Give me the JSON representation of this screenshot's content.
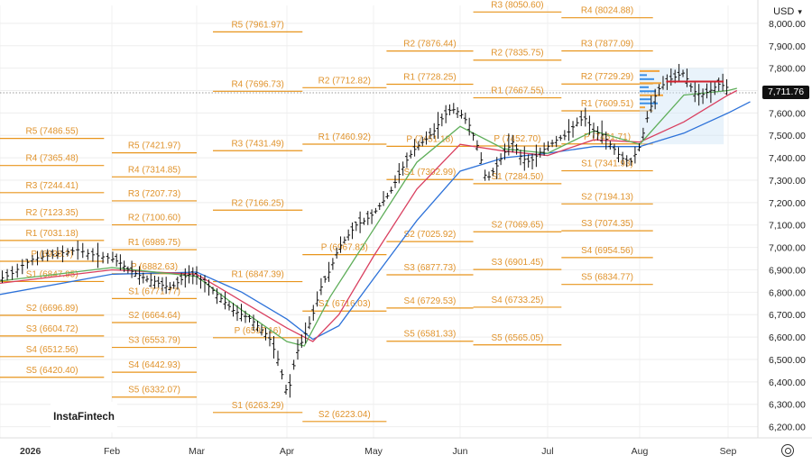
{
  "chart_data": {
    "type": "candlestick-ohlc",
    "currency": "USD",
    "current_price": "7,711.76",
    "watermark": "InstaFintech",
    "y_ticks": [
      "8,000.00",
      "7,900.00",
      "7,800.00",
      "7,700.00",
      "7,600.00",
      "7,500.00",
      "7,400.00",
      "7,300.00",
      "7,200.00",
      "7,100.00",
      "7,000.00",
      "6,900.00",
      "6,800.00",
      "6,700.00",
      "6,600.00",
      "6,500.00",
      "6,400.00",
      "6,300.00",
      "6,200.00"
    ],
    "ylim": [
      6150,
      8080
    ],
    "x_ticks": [
      "2026",
      "Feb",
      "Mar",
      "Apr",
      "May",
      "Jun",
      "Jul",
      "Aug",
      "Sep"
    ],
    "pivot_levels": [
      {
        "t0": 0,
        "t1": 0.93,
        "labels": [
          {
            "label": "R2 (7123.35)",
            "y": 7123.35
          },
          {
            "label": "R1 (7031.18)",
            "y": 7031.18
          },
          {
            "label": "P (6938.?)",
            "y": 6938
          },
          {
            "label": "S1 (6847.95)",
            "y": 6847.95
          },
          {
            "label": "S2 (6696.89)",
            "y": 6696.89
          },
          {
            "label": "S3 (6604.72)",
            "y": 6604.72
          },
          {
            "label": "S4 (6512.56)",
            "y": 6512.56
          },
          {
            "label": "S5 (6420.40)",
            "y": 6420.4
          },
          {
            "label": "R5 (7486.55)",
            "y": 7486.55
          },
          {
            "label": "R4 (7365.48)",
            "y": 7365.48
          },
          {
            "label": "R3 (7244.41)",
            "y": 7244.41
          }
        ]
      },
      {
        "t0": 1,
        "t1": 2,
        "labels": [
          {
            "label": "R5 (7421.97)",
            "y": 7421.97
          },
          {
            "label": "R4 (7314.85)",
            "y": 7314.85
          },
          {
            "label": "R3 (7207.73)",
            "y": 7207.73
          },
          {
            "label": "R2 (7100.60)",
            "y": 7100.6
          },
          {
            "label": "R1 (6989.75)",
            "y": 6989.75
          },
          {
            "label": "P (6882.63)",
            "y": 6882.63
          },
          {
            "label": "S1 (6771.77)",
            "y": 6771.77
          },
          {
            "label": "S2 (6664.64)",
            "y": 6664.64
          },
          {
            "label": "S3 (6553.79)",
            "y": 6553.79
          },
          {
            "label": "S4 (6442.93)",
            "y": 6442.93
          },
          {
            "label": "S5 (6332.07)",
            "y": 6332.07
          }
        ]
      },
      {
        "t0": 2.18,
        "t1": 3.18,
        "labels": [
          {
            "label": "R5 (7961.97)",
            "y": 7961.97
          },
          {
            "label": "R4 (7696.73)",
            "y": 7696.73
          },
          {
            "label": "R3 (7431.49)",
            "y": 7431.49
          },
          {
            "label": "R2 (7166.25)",
            "y": 7166.25
          },
          {
            "label": "R1 (6847.39)",
            "y": 6847.39
          },
          {
            "label": "P (6597.16)",
            "y": 6597.16
          },
          {
            "label": "S1 (6263.29)",
            "y": 6263.29
          }
        ]
      },
      {
        "t0": 3.18,
        "t1": 4.15,
        "labels": [
          {
            "label": "R2 (7712.82)",
            "y": 7712.82
          },
          {
            "label": "R1 (7460.92)",
            "y": 7460.92
          },
          {
            "label": "P (6967.83)",
            "y": 6967.83
          },
          {
            "label": "S1 (6716.03)",
            "y": 6716.03
          },
          {
            "label": "S2 (6223.04)",
            "y": 6223.04
          }
        ]
      },
      {
        "t0": 4.15,
        "t1": 5.15,
        "labels": [
          {
            "label": "R2 (7876.44)",
            "y": 7876.44
          },
          {
            "label": "R1 (7728.25)",
            "y": 7728.25
          },
          {
            "label": "P (7451.18)",
            "y": 7451.18
          },
          {
            "label": "S1 (7302.99)",
            "y": 7302.99
          },
          {
            "label": "S2 (7025.92)",
            "y": 7025.92
          },
          {
            "label": "S3 (6877.73)",
            "y": 6877.73
          },
          {
            "label": "S4 (6729.53)",
            "y": 6729.53
          },
          {
            "label": "S5 (6581.33)",
            "y": 6581.33
          }
        ]
      },
      {
        "t0": 5.15,
        "t1": 6.15,
        "labels": [
          {
            "label": "R3 (8050.60)",
            "y": 8050.6
          },
          {
            "label": "R2 (7835.75)",
            "y": 7835.75
          },
          {
            "label": "R1 (7667.55)",
            "y": 7667.55
          },
          {
            "label": "P (7452.70)",
            "y": 7452.7
          },
          {
            "label": "S1 (7284.50)",
            "y": 7284.5
          },
          {
            "label": "S2 (7069.65)",
            "y": 7069.65
          },
          {
            "label": "S3 (6901.45)",
            "y": 6901.45
          },
          {
            "label": "S4 (6733.25)",
            "y": 6733.25
          },
          {
            "label": "S5 (6565.05)",
            "y": 6565.05
          }
        ]
      },
      {
        "t0": 6.15,
        "t1": 7.15,
        "labels": [
          {
            "label": "R4 (8024.88)",
            "y": 8024.88
          },
          {
            "label": "R3 (7877.09)",
            "y": 7877.09
          },
          {
            "label": "R2 (7729.29)",
            "y": 7729.29
          },
          {
            "label": "R1 (7609.51)",
            "y": 7609.51
          },
          {
            "label": "P (7461.71)",
            "y": 7461.71
          },
          {
            "label": "S1 (7341.93)",
            "y": 7341.93
          },
          {
            "label": "S2 (7194.13)",
            "y": 7194.13
          },
          {
            "label": "S3 (7074.35)",
            "y": 7074.35
          },
          {
            "label": "S4 (6954.56)",
            "y": 6954.56
          },
          {
            "label": "S5 (6834.77)",
            "y": 6834.77
          }
        ]
      }
    ],
    "price_path": [
      [
        0.0,
        6860
      ],
      [
        0.1,
        6880
      ],
      [
        0.2,
        6920
      ],
      [
        0.3,
        6950
      ],
      [
        0.4,
        6960
      ],
      [
        0.5,
        6970
      ],
      [
        0.6,
        6980
      ],
      [
        0.7,
        6990
      ],
      [
        0.8,
        6970
      ],
      [
        0.9,
        6960
      ],
      [
        1.0,
        6950
      ],
      [
        1.1,
        6930
      ],
      [
        1.2,
        6900
      ],
      [
        1.3,
        6880
      ],
      [
        1.4,
        6860
      ],
      [
        1.5,
        6850
      ],
      [
        1.6,
        6830
      ],
      [
        1.7,
        6820
      ],
      [
        1.8,
        6850
      ],
      [
        1.9,
        6880
      ],
      [
        2.0,
        6870
      ],
      [
        2.1,
        6840
      ],
      [
        2.2,
        6800
      ],
      [
        2.3,
        6760
      ],
      [
        2.4,
        6720
      ],
      [
        2.5,
        6700
      ],
      [
        2.6,
        6680
      ],
      [
        2.7,
        6640
      ],
      [
        2.8,
        6600
      ],
      [
        2.9,
        6500
      ],
      [
        3.0,
        6350
      ],
      [
        3.05,
        6400
      ],
      [
        3.1,
        6520
      ],
      [
        3.2,
        6600
      ],
      [
        3.3,
        6700
      ],
      [
        3.4,
        6830
      ],
      [
        3.5,
        6900
      ],
      [
        3.6,
        7000
      ],
      [
        3.7,
        7050
      ],
      [
        3.8,
        7100
      ],
      [
        3.9,
        7120
      ],
      [
        4.0,
        7150
      ],
      [
        4.1,
        7200
      ],
      [
        4.2,
        7250
      ],
      [
        4.3,
        7330
      ],
      [
        4.4,
        7400
      ],
      [
        4.5,
        7450
      ],
      [
        4.6,
        7480
      ],
      [
        4.7,
        7520
      ],
      [
        4.8,
        7580
      ],
      [
        4.9,
        7620
      ],
      [
        5.0,
        7600
      ],
      [
        5.1,
        7550
      ],
      [
        5.2,
        7450
      ],
      [
        5.3,
        7300
      ],
      [
        5.4,
        7350
      ],
      [
        5.5,
        7420
      ],
      [
        5.6,
        7470
      ],
      [
        5.7,
        7400
      ],
      [
        5.8,
        7380
      ],
      [
        5.9,
        7420
      ],
      [
        6.0,
        7450
      ],
      [
        6.1,
        7480
      ],
      [
        6.2,
        7500
      ],
      [
        6.3,
        7550
      ],
      [
        6.4,
        7580
      ],
      [
        6.5,
        7520
      ],
      [
        6.6,
        7500
      ],
      [
        6.7,
        7450
      ],
      [
        6.8,
        7400
      ],
      [
        6.9,
        7380
      ],
      [
        7.0,
        7450
      ],
      [
        7.1,
        7600
      ],
      [
        7.2,
        7700
      ],
      [
        7.3,
        7740
      ],
      [
        7.4,
        7760
      ],
      [
        7.5,
        7780
      ],
      [
        7.6,
        7700
      ],
      [
        7.7,
        7680
      ],
      [
        7.8,
        7700
      ],
      [
        7.9,
        7730
      ],
      [
        8.0,
        7711.76
      ]
    ],
    "ma_fast": [
      [
        0,
        6850
      ],
      [
        1,
        6910
      ],
      [
        2,
        6870
      ],
      [
        2.5,
        6720
      ],
      [
        3,
        6580
      ],
      [
        3.2,
        6560
      ],
      [
        3.5,
        6780
      ],
      [
        4,
        7080
      ],
      [
        4.5,
        7380
      ],
      [
        5,
        7540
      ],
      [
        5.5,
        7440
      ],
      [
        6,
        7420
      ],
      [
        6.5,
        7520
      ],
      [
        7,
        7460
      ],
      [
        7.5,
        7680
      ],
      [
        8,
        7700
      ],
      [
        8.1,
        7710
      ]
    ],
    "ma_mid": [
      [
        0,
        6840
      ],
      [
        1,
        6900
      ],
      [
        2,
        6880
      ],
      [
        2.5,
        6760
      ],
      [
        3,
        6640
      ],
      [
        3.3,
        6580
      ],
      [
        3.6,
        6700
      ],
      [
        4,
        6960
      ],
      [
        4.5,
        7260
      ],
      [
        5,
        7460
      ],
      [
        5.5,
        7430
      ],
      [
        6,
        7410
      ],
      [
        6.5,
        7480
      ],
      [
        7,
        7470
      ],
      [
        7.5,
        7560
      ],
      [
        8,
        7680
      ],
      [
        8.1,
        7700
      ]
    ],
    "ma_slow": [
      [
        0,
        6790
      ],
      [
        1,
        6880
      ],
      [
        2,
        6890
      ],
      [
        2.5,
        6800
      ],
      [
        3,
        6680
      ],
      [
        3.3,
        6590
      ],
      [
        3.6,
        6650
      ],
      [
        4,
        6860
      ],
      [
        4.5,
        7120
      ],
      [
        5,
        7340
      ],
      [
        5.5,
        7400
      ],
      [
        6,
        7420
      ],
      [
        6.5,
        7450
      ],
      [
        7,
        7450
      ],
      [
        7.5,
        7510
      ],
      [
        8,
        7600
      ],
      [
        8.25,
        7650
      ]
    ],
    "horizontal_marker": {
      "y": 7740,
      "t0": 7.3,
      "t1": 7.95
    },
    "volume_profile_region": {
      "y0": 7460,
      "y1": 7800,
      "t0": 7.0,
      "t1": 7.95
    },
    "colors": {
      "level": "#e8951c",
      "candle": "#111111",
      "ma_fast": "#5fae5a",
      "ma_mid": "#d94060",
      "ma_slow": "#2d72d9",
      "marker": "#d0212d",
      "accent_box": "#cfe4f7"
    }
  },
  "toolbar": {
    "gear_title": "settings"
  }
}
